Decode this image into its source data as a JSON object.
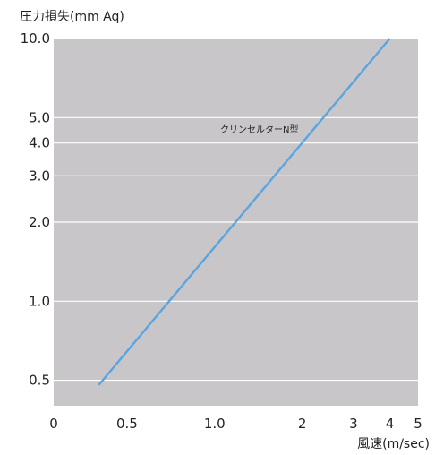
{
  "chart_data": {
    "type": "line",
    "ylabel": "圧力損失(mm Aq)",
    "xlabel": "風速(m/sec)",
    "x_scale": "log",
    "y_scale": "log",
    "x_ticks": [
      {
        "value": 0.5,
        "label": "0.5"
      },
      {
        "value": 1.0,
        "label": "1.0"
      },
      {
        "value": 2,
        "label": "2"
      },
      {
        "value": 3,
        "label": "3"
      },
      {
        "value": 4,
        "label": "4"
      },
      {
        "value": 5,
        "label": "5"
      }
    ],
    "x_origin_label": "0",
    "y_ticks": [
      {
        "value": 0.5,
        "label": "0.5"
      },
      {
        "value": 1.0,
        "label": "1.0"
      },
      {
        "value": 2.0,
        "label": "2.0"
      },
      {
        "value": 3.0,
        "label": "3.0"
      },
      {
        "value": 4.0,
        "label": "4.0"
      },
      {
        "value": 5.0,
        "label": "5.0"
      },
      {
        "value": 10.0,
        "label": "10.0"
      }
    ],
    "xlim": [
      0.28,
      5
    ],
    "ylim": [
      0.4,
      10
    ],
    "grid": "horizontal",
    "series": [
      {
        "name": "クリンセルターN型",
        "color": "#5aa5e0",
        "x": [
          0.4,
          4.0
        ],
        "y": [
          0.48,
          10.0
        ]
      }
    ],
    "background_color": "#c9c6ca",
    "grid_color": "#ffffff"
  }
}
